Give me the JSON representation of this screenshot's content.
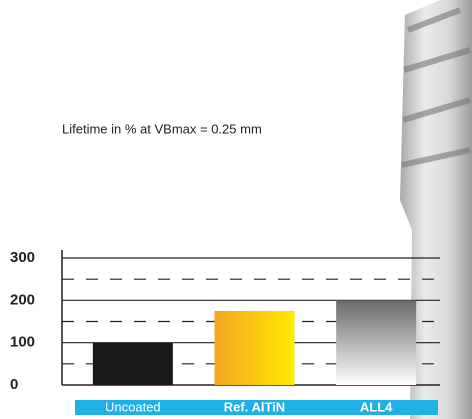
{
  "chart_data": {
    "type": "bar",
    "title": "Lifetime in % at VBmax = 0.25 mm",
    "categories": [
      "Uncoated",
      "Ref. AlTiN",
      "ALL4"
    ],
    "values": [
      100,
      175,
      200
    ],
    "bar_gradients": [
      {
        "from": "#1a1a1a",
        "to": "#1a1a1a",
        "direction": "vertical"
      },
      {
        "from": "#f5a623",
        "to": "#ffea00",
        "direction": "horizontal"
      },
      {
        "from": "#6a6a6a",
        "to": "#ffffff",
        "direction": "vertical"
      }
    ],
    "ylim": [
      0,
      300
    ],
    "yticks": [
      0,
      100,
      200,
      300
    ],
    "minor_gridlines": [
      50,
      150,
      250
    ],
    "grid": true,
    "category_band_color": "#1fb0e6"
  }
}
